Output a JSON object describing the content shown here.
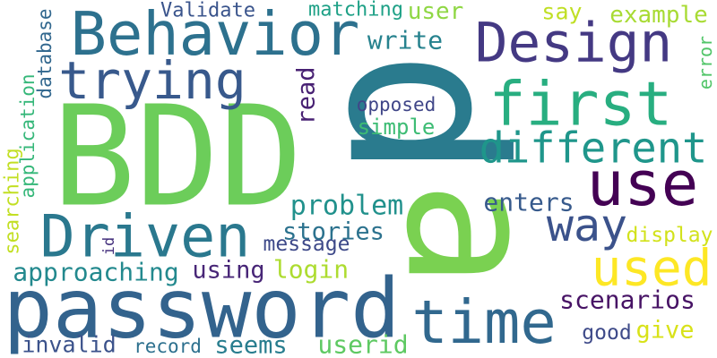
{
  "words": [
    "p",
    "a",
    "BDD",
    "password",
    "Behavior",
    "Design",
    "trying",
    "first",
    "different",
    "use",
    "Driven",
    "way",
    "used",
    "time",
    "scenarios",
    "give",
    "good",
    "userid",
    "seems",
    "record",
    "invalid",
    "approaching",
    "using",
    "login",
    "message",
    "stories",
    "problem",
    "enters",
    "display",
    "simple",
    "opposed",
    "read",
    "write",
    "user",
    "matching",
    "Validate",
    "say",
    "example",
    "error",
    "database",
    "application",
    "searching",
    "id"
  ]
}
